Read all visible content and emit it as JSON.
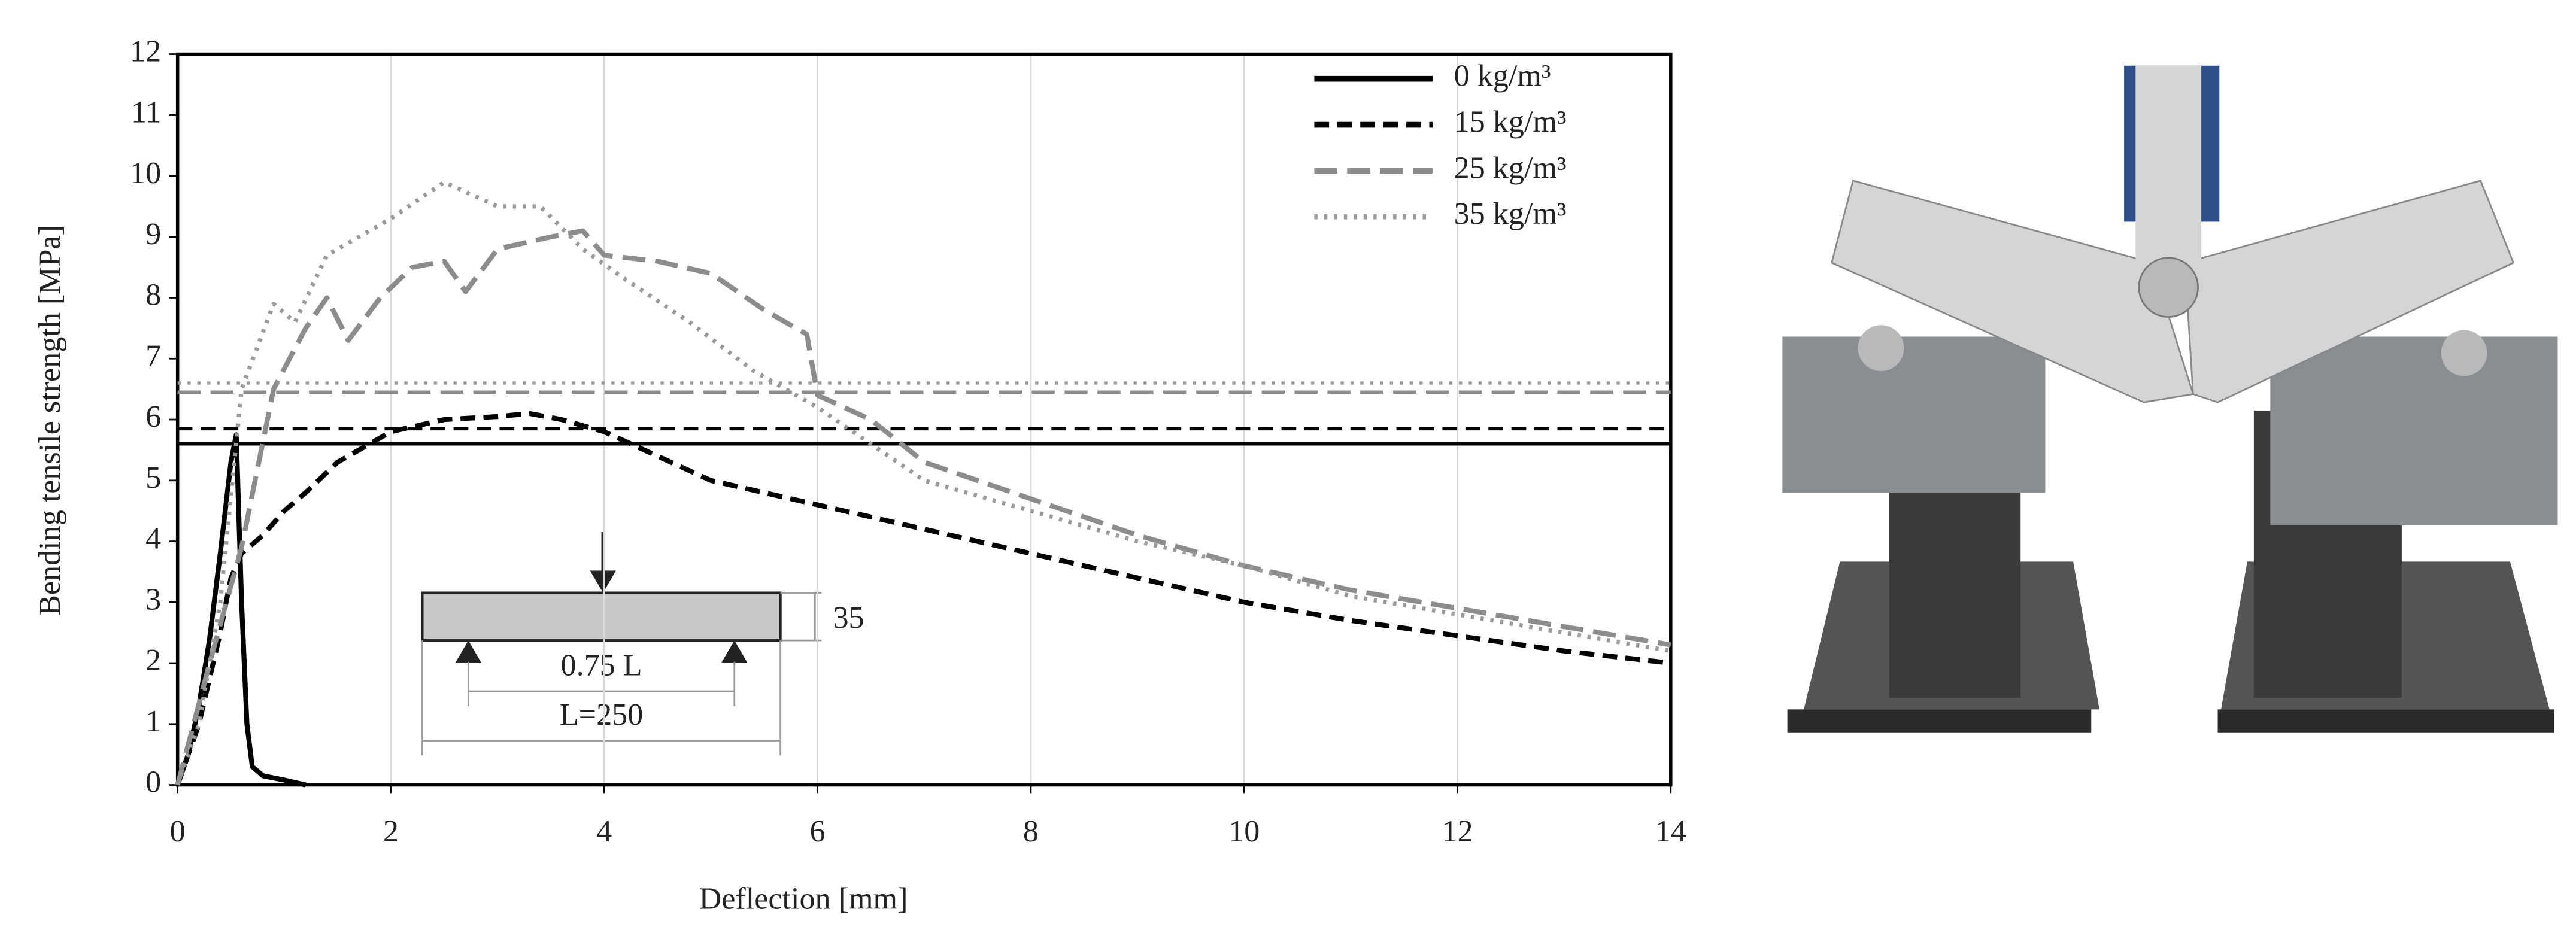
{
  "chart_data": {
    "type": "line",
    "xlabel": "Deflection [mm]",
    "ylabel": "Bending tensile strength [MPa]",
    "xlim": [
      0,
      14
    ],
    "xticks": [
      0,
      2,
      4,
      6,
      8,
      10,
      12,
      14
    ],
    "ylim": [
      0,
      12
    ],
    "yticks": [
      0,
      1,
      2,
      3,
      4,
      5,
      6,
      7,
      8,
      9,
      10,
      11,
      12
    ],
    "grid": "x",
    "legend": "upper right",
    "series": [
      {
        "name": "0 kg/m³",
        "color": "#000000",
        "style": "solid",
        "reference": 5.6,
        "x": [
          0,
          0.1,
          0.2,
          0.3,
          0.4,
          0.5,
          0.55,
          0.6,
          0.65,
          0.7,
          0.8,
          1.0,
          1.2
        ],
        "values": [
          0,
          0.5,
          1.3,
          2.4,
          3.8,
          5.3,
          5.75,
          3.0,
          1.0,
          0.3,
          0.15,
          0.08,
          0
        ]
      },
      {
        "name": "15 kg/m³",
        "color": "#000000",
        "style": "dashed",
        "reference": 5.85,
        "x": [
          0,
          0.2,
          0.4,
          0.5,
          0.6,
          0.8,
          1.0,
          1.2,
          1.5,
          1.8,
          2.0,
          2.5,
          3.0,
          3.3,
          3.6,
          4.0,
          4.5,
          5.0,
          6.0,
          7.0,
          8.0,
          9.0,
          10.0,
          11.0,
          12.0,
          13.0,
          14.0
        ],
        "values": [
          0,
          1.0,
          2.5,
          3.4,
          3.8,
          4.1,
          4.5,
          4.8,
          5.3,
          5.6,
          5.8,
          6.0,
          6.05,
          6.1,
          6.0,
          5.8,
          5.4,
          5.0,
          4.6,
          4.2,
          3.8,
          3.4,
          3.0,
          2.7,
          2.45,
          2.2,
          2.0
        ]
      },
      {
        "name": "25 kg/m³",
        "color": "#8c8c8c",
        "style": "long-dashed",
        "reference": 6.45,
        "x": [
          0,
          0.3,
          0.6,
          0.9,
          1.2,
          1.4,
          1.6,
          1.9,
          2.2,
          2.5,
          2.7,
          3.0,
          3.5,
          3.8,
          4.0,
          4.5,
          5.0,
          5.5,
          5.9,
          6.0,
          6.5,
          7.0,
          8.0,
          9.0,
          10.0,
          11.0,
          12.0,
          13.0,
          14.0
        ],
        "values": [
          0,
          2.0,
          3.9,
          6.5,
          7.5,
          8.0,
          7.3,
          8.0,
          8.5,
          8.6,
          8.1,
          8.8,
          9.0,
          9.1,
          8.7,
          8.6,
          8.4,
          7.8,
          7.4,
          6.4,
          6.0,
          5.3,
          4.7,
          4.1,
          3.6,
          3.2,
          2.9,
          2.6,
          2.3
        ]
      },
      {
        "name": "35 kg/m³",
        "color": "#9a9a9a",
        "style": "dotted",
        "reference": 6.6,
        "x": [
          0,
          0.2,
          0.4,
          0.6,
          0.9,
          1.1,
          1.4,
          1.7,
          2.0,
          2.5,
          3.0,
          3.4,
          3.8,
          4.2,
          4.8,
          5.4,
          6.0,
          6.5,
          7.0,
          8.0,
          9.0,
          10.0,
          11.0,
          12.0,
          13.0,
          14.0
        ],
        "values": [
          0,
          1.0,
          3.0,
          6.5,
          7.9,
          7.6,
          8.7,
          9.0,
          9.3,
          9.9,
          9.5,
          9.5,
          8.8,
          8.3,
          7.6,
          6.8,
          6.2,
          5.6,
          5.0,
          4.5,
          4.0,
          3.6,
          3.1,
          2.8,
          2.5,
          2.2
        ]
      }
    ],
    "inset": {
      "span_label": "0.75 L",
      "length_label": "L=250",
      "height_label": 35
    }
  }
}
